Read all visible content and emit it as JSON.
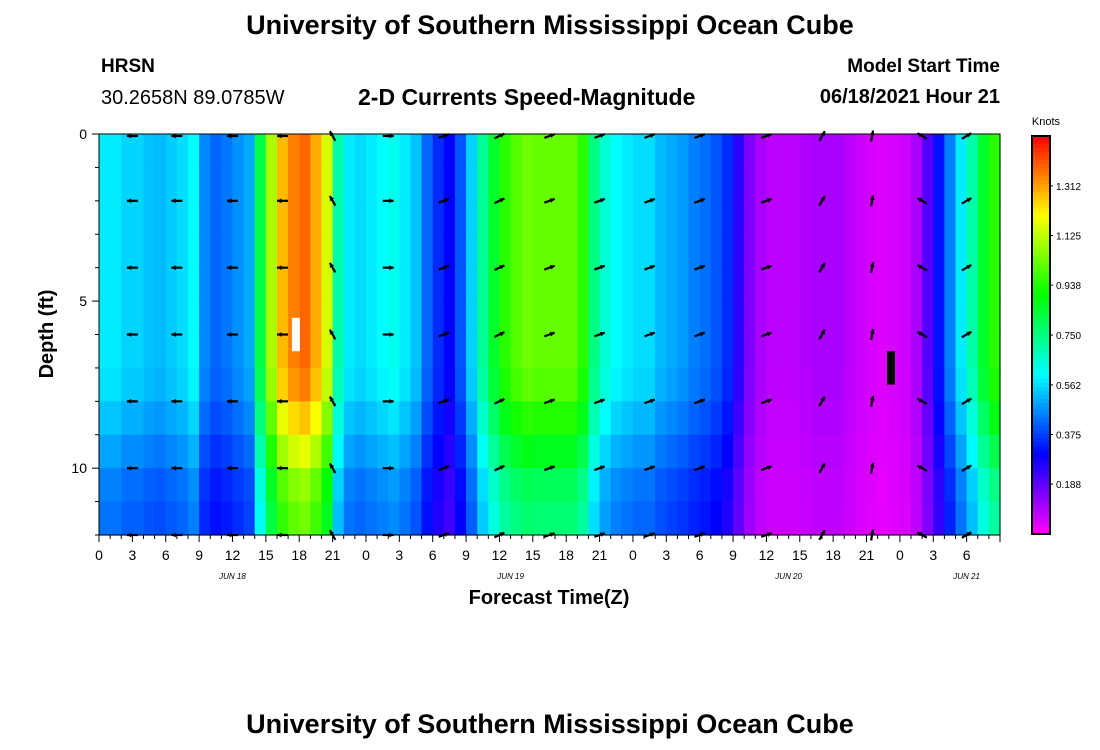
{
  "page": {
    "title_top": "University of Southern Mississippi Ocean Cube",
    "title_bottom": "University of Southern Mississippi Ocean Cube",
    "station_code": "HRSN",
    "station_coords": "30.2658N  89.0785W",
    "plot_title": "2-D Currents Speed-Magnitude",
    "model_start_label": "Model Start Time",
    "model_start_value": "06/18/2021 Hour 21"
  },
  "chart_data": {
    "type": "heatmap",
    "title": "2-D Currents Speed-Magnitude",
    "xlabel": "Forecast Time(Z)",
    "ylabel": "Depth (ft)",
    "colorbar_label": "Knots",
    "colorbar_ticks": [
      "1.312",
      "1.125",
      "0.938",
      "0.750",
      "0.562",
      "0.375",
      "0.188"
    ],
    "colorbar_values": [
      1.312,
      1.125,
      0.938,
      0.75,
      0.562,
      0.375,
      0.188
    ],
    "value_range": [
      0.0,
      1.5
    ],
    "x_range_hours": [
      0,
      81
    ],
    "x_tick_labels": [
      "0",
      "3",
      "6",
      "9",
      "12",
      "15",
      "18",
      "21",
      "0",
      "3",
      "6",
      "9",
      "12",
      "15",
      "18",
      "21",
      "0",
      "3",
      "6",
      "9",
      "12",
      "15",
      "18",
      "21",
      "0",
      "3",
      "6"
    ],
    "date_labels": [
      {
        "label": "JUN 18",
        "hour": 12
      },
      {
        "label": "JUN 19",
        "hour": 37
      },
      {
        "label": "JUN 20",
        "hour": 62
      },
      {
        "label": "JUN 21",
        "hour": 78
      }
    ],
    "y_range_ft": [
      0,
      12
    ],
    "y_tick_labels": [
      "0",
      "5",
      "10"
    ],
    "y_tick_values": [
      0,
      5,
      10
    ],
    "columns_speed": [
      0.58,
      0.58,
      0.55,
      0.55,
      0.53,
      0.52,
      0.54,
      0.56,
      0.6,
      0.46,
      0.42,
      0.44,
      0.47,
      0.5,
      0.82,
      1.1,
      1.28,
      1.35,
      1.38,
      1.3,
      1.15,
      0.7,
      0.58,
      0.56,
      0.58,
      0.6,
      0.62,
      0.58,
      0.53,
      0.42,
      0.35,
      0.3,
      0.4,
      0.55,
      0.72,
      0.85,
      0.95,
      1.0,
      1.03,
      1.02,
      1.02,
      1.02,
      1.02,
      0.95,
      0.75,
      0.65,
      0.6,
      0.58,
      0.56,
      0.56,
      0.52,
      0.5,
      0.48,
      0.45,
      0.43,
      0.4,
      0.35,
      0.25,
      0.15,
      0.1,
      0.08,
      0.08,
      0.08,
      0.09,
      0.1,
      0.1,
      0.1,
      0.08,
      0.06,
      0.05,
      0.04,
      0.05,
      0.06,
      0.1,
      0.2,
      0.32,
      0.45,
      0.58,
      0.7,
      0.85,
      0.95
    ],
    "depth_factors": [
      1.0,
      1.0,
      1.0,
      1.0,
      1.0,
      1.0,
      1.0,
      0.98,
      0.92,
      0.85,
      0.78,
      0.75
    ],
    "arrow_hours": [
      3,
      7,
      12,
      16.5,
      21,
      26,
      31,
      36,
      40.5,
      45,
      49.5,
      54,
      60,
      65,
      69.5,
      74,
      78
    ],
    "arrow_depths_ft": [
      0,
      2,
      4,
      6,
      8,
      10,
      12
    ],
    "arrow_directions_deg": [
      180,
      180,
      180,
      180,
      120,
      0,
      20,
      25,
      20,
      20,
      20,
      20,
      20,
      60,
      80,
      150,
      30
    ],
    "markers": [
      {
        "hour": 17.7,
        "depth_from": 5.5,
        "depth_to": 6.5,
        "color": "#ffffff"
      },
      {
        "hour": 71.2,
        "depth_from": 6.5,
        "depth_to": 7.5,
        "color": "#000000"
      }
    ]
  }
}
